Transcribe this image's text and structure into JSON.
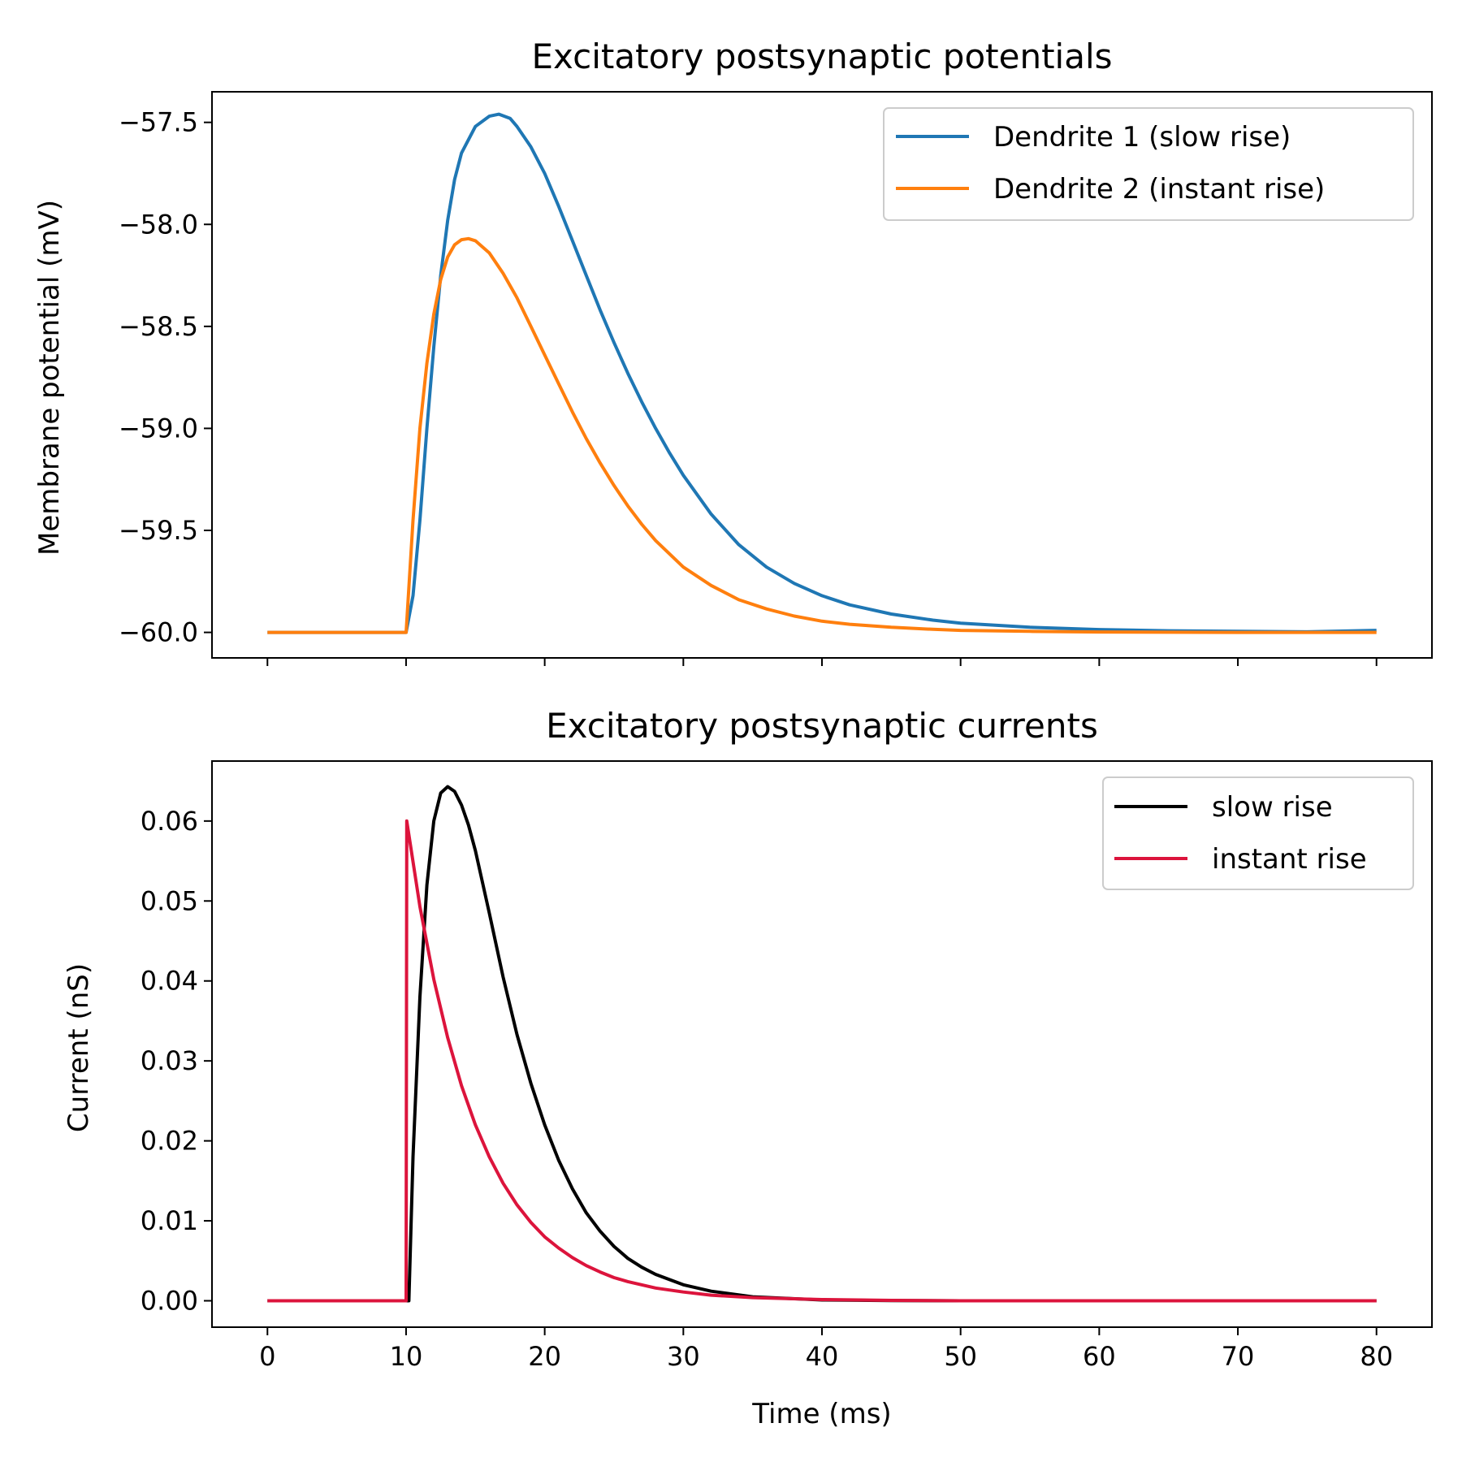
{
  "chart_data": [
    {
      "type": "line",
      "title": "Excitatory postsynaptic potentials",
      "xlabel": "",
      "ylabel": "Membrane potential (mV)",
      "xlim": [
        -4,
        84
      ],
      "ylim": [
        -60.125,
        -57.35
      ],
      "x_ticks": [
        0,
        10,
        20,
        30,
        40,
        50,
        60,
        70,
        80
      ],
      "x_tick_labels_visible": false,
      "y_ticks": [
        -60.0,
        -59.5,
        -59.0,
        -58.5,
        -58.0,
        -57.5
      ],
      "y_tick_labels": [
        "−60.0",
        "−59.5",
        "−59.0",
        "−58.5",
        "−58.0",
        "−57.5"
      ],
      "grid": false,
      "legend_position": "top-right",
      "series": [
        {
          "name": "Dendrite 1 (slow rise)",
          "color": "#1f77b4",
          "x": [
            0,
            10,
            10.5,
            11,
            11.5,
            12,
            12.5,
            13,
            13.5,
            14,
            15,
            16,
            16.7,
            17.5,
            18,
            19,
            20,
            21,
            22,
            23,
            24,
            25,
            26,
            27,
            28,
            29,
            30,
            32,
            34,
            36,
            38,
            40,
            42,
            45,
            48,
            50,
            55,
            60,
            65,
            70,
            75,
            80
          ],
          "y": [
            -60.0,
            -60.0,
            -59.82,
            -59.45,
            -59.0,
            -58.6,
            -58.25,
            -57.98,
            -57.78,
            -57.65,
            -57.52,
            -57.47,
            -57.46,
            -57.48,
            -57.52,
            -57.62,
            -57.75,
            -57.91,
            -58.08,
            -58.25,
            -58.42,
            -58.58,
            -58.73,
            -58.87,
            -59.0,
            -59.12,
            -59.23,
            -59.42,
            -59.57,
            -59.68,
            -59.76,
            -59.82,
            -59.865,
            -59.91,
            -59.94,
            -59.955,
            -59.975,
            -59.986,
            -59.992,
            -59.995,
            -59.997,
            -59.99
          ]
        },
        {
          "name": "Dendrite 2 (instant rise)",
          "color": "#ff7f0e",
          "x": [
            0,
            10,
            10.5,
            11,
            11.5,
            12,
            12.5,
            13,
            13.5,
            14,
            14.5,
            15,
            16,
            17,
            18,
            19,
            20,
            21,
            22,
            23,
            24,
            25,
            26,
            27,
            28,
            30,
            32,
            34,
            36,
            38,
            40,
            42,
            45,
            48,
            50,
            55,
            60,
            65,
            70,
            75,
            80
          ],
          "y": [
            -60.0,
            -60.0,
            -59.45,
            -59.0,
            -58.68,
            -58.44,
            -58.27,
            -58.16,
            -58.1,
            -58.075,
            -58.07,
            -58.08,
            -58.14,
            -58.24,
            -58.36,
            -58.5,
            -58.64,
            -58.78,
            -58.92,
            -59.05,
            -59.17,
            -59.28,
            -59.38,
            -59.47,
            -59.55,
            -59.68,
            -59.77,
            -59.84,
            -59.885,
            -59.92,
            -59.945,
            -59.96,
            -59.975,
            -59.985,
            -59.99,
            -59.995,
            -59.998,
            -59.999,
            -60.0,
            -60.0,
            -60.0
          ]
        }
      ]
    },
    {
      "type": "line",
      "title": "Excitatory postsynaptic currents",
      "xlabel": "Time (ms)",
      "ylabel": "Current (nS)",
      "xlim": [
        -4,
        84
      ],
      "ylim": [
        -0.0033,
        0.0675
      ],
      "x_ticks": [
        0,
        10,
        20,
        30,
        40,
        50,
        60,
        70,
        80
      ],
      "x_tick_labels": [
        "0",
        "10",
        "20",
        "30",
        "40",
        "50",
        "60",
        "70",
        "80"
      ],
      "y_ticks": [
        0.0,
        0.01,
        0.02,
        0.03,
        0.04,
        0.05,
        0.06
      ],
      "y_tick_labels": [
        "0.00",
        "0.01",
        "0.02",
        "0.03",
        "0.04",
        "0.05",
        "0.06"
      ],
      "grid": false,
      "legend_position": "top-right",
      "series": [
        {
          "name": "slow rise",
          "color": "#000000",
          "x": [
            0,
            10,
            10.2,
            10.5,
            11,
            11.5,
            12,
            12.5,
            13,
            13.5,
            14,
            14.5,
            15,
            16,
            17,
            18,
            19,
            20,
            21,
            22,
            23,
            24,
            25,
            26,
            27,
            28,
            30,
            32,
            35,
            40,
            45,
            50,
            60,
            70,
            80
          ],
          "y": [
            0.0,
            0.0,
            0.0,
            0.018,
            0.038,
            0.052,
            0.06,
            0.0635,
            0.0643,
            0.0637,
            0.062,
            0.0595,
            0.0563,
            0.0485,
            0.0405,
            0.0333,
            0.0272,
            0.022,
            0.0176,
            0.014,
            0.011,
            0.0087,
            0.0068,
            0.0053,
            0.0042,
            0.0033,
            0.002,
            0.0012,
            0.0005,
            0.0001,
            3e-05,
            0.0,
            0.0,
            0.0,
            0.0
          ]
        },
        {
          "name": "instant rise",
          "color": "#dc143c",
          "x": [
            0,
            10,
            10.05,
            11,
            12,
            13,
            14,
            15,
            16,
            17,
            18,
            19,
            20,
            21,
            22,
            23,
            24,
            25,
            26,
            28,
            30,
            32,
            35,
            40,
            45,
            50,
            60,
            70,
            80
          ],
          "y": [
            0.0,
            0.0,
            0.06,
            0.0493,
            0.0402,
            0.0329,
            0.0269,
            0.022,
            0.018,
            0.0147,
            0.012,
            0.0098,
            0.008,
            0.0066,
            0.0054,
            0.0044,
            0.0036,
            0.0029,
            0.0024,
            0.0016,
            0.0011,
            0.0007,
            0.0004,
            0.00015,
            5e-05,
            0.0,
            0.0,
            0.0,
            0.0
          ]
        }
      ]
    }
  ]
}
